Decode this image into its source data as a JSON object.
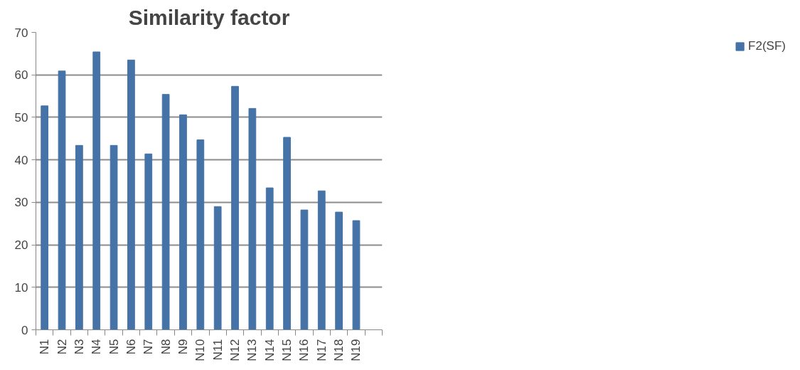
{
  "chart_data": {
    "type": "bar",
    "title": "Similarity factor",
    "categories": [
      "N1",
      "N2",
      "N3",
      "N4",
      "N5",
      "N6",
      "N7",
      "N8",
      "N9",
      "N10",
      "N11",
      "N12",
      "N13",
      "N14",
      "N15",
      "N16",
      "N17",
      "N18",
      "N19",
      null
    ],
    "series": [
      {
        "name": "F2(SF)",
        "color": "#4573a7",
        "values": [
          52.7,
          60.9,
          43.4,
          65.4,
          43.4,
          63.5,
          41.4,
          55.4,
          50.6,
          44.7,
          29.0,
          57.3,
          52.1,
          33.4,
          45.3,
          28.2,
          32.7,
          27.7,
          25.7,
          null
        ]
      }
    ],
    "ylim": [
      0,
      70
    ],
    "yticks": [
      0,
      10,
      20,
      30,
      40,
      50,
      60,
      70
    ],
    "grid": "y",
    "legend": "right"
  }
}
